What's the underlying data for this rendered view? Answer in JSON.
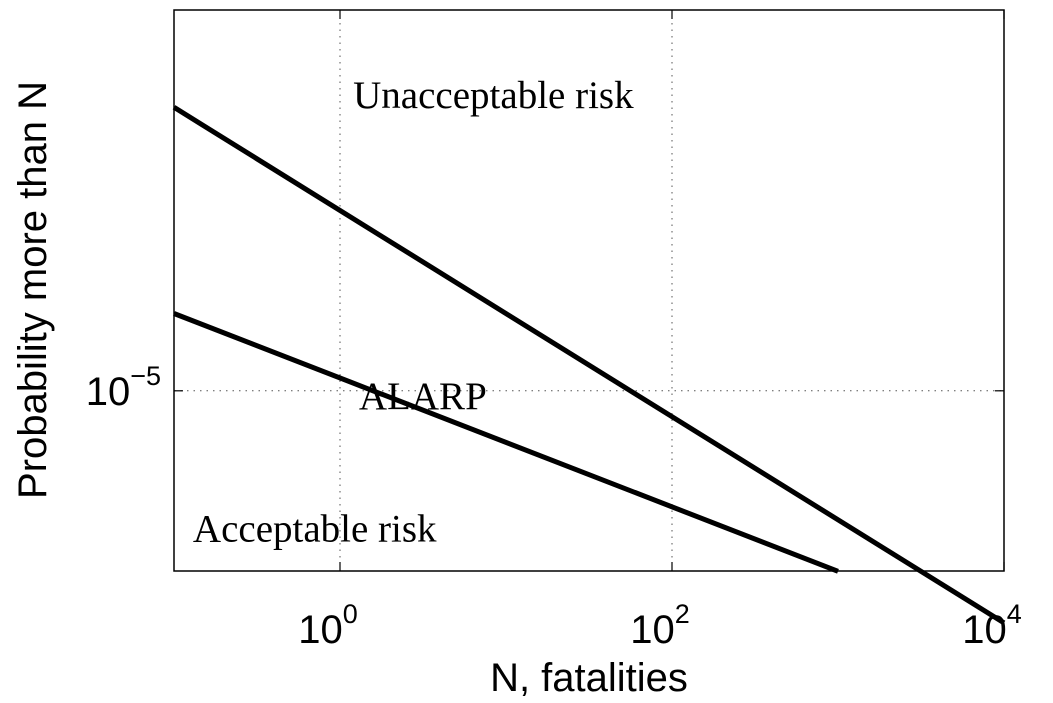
{
  "chart_data": {
    "type": "line",
    "title": "",
    "xlabel": "N, fatalities",
    "ylabel": "Probability more than N",
    "x_scale": "log",
    "y_scale": "log",
    "xlim": [
      0.1,
      10000
    ],
    "ylim": [
      2e-06,
      0.0003
    ],
    "grid": true,
    "x_ticks": [
      {
        "value": 1,
        "base": "10",
        "exp": "0"
      },
      {
        "value": 100,
        "base": "10",
        "exp": "2"
      },
      {
        "value": 10000,
        "base": "10",
        "exp": "4"
      }
    ],
    "y_ticks": [
      {
        "value": 1e-05,
        "base": "10",
        "exp": "−5"
      }
    ],
    "series": [
      {
        "x": [
          0.1,
          10000
        ],
        "y": [
          0.0001258,
          1.258e-06
        ]
      },
      {
        "x": [
          0.1,
          1000
        ],
        "y": [
          1.995e-05,
          1.995e-06
        ]
      }
    ],
    "annotations": [
      {
        "text": "Unacceptable risk",
        "x": 1.2,
        "y": 0.000125
      },
      {
        "text": "ALARP",
        "x": 1.3,
        "y": 8.5e-06
      },
      {
        "text": "Acceptable risk",
        "x": 0.13,
        "y": 2.6e-06
      }
    ]
  }
}
